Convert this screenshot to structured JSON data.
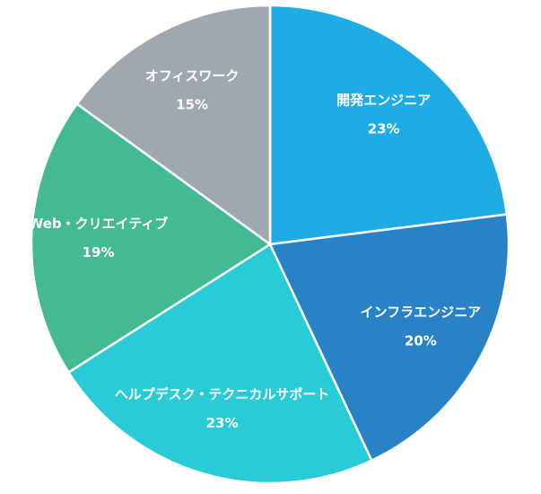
{
  "chart_data": {
    "type": "pie",
    "title": "",
    "start_angle": "12 o'clock",
    "direction": "clockwise",
    "slices": [
      {
        "label": "開発エンジニア",
        "value": 23,
        "value_label": "23%",
        "color": "#1fabe3"
      },
      {
        "label": "インフラエンジニア",
        "value": 20,
        "value_label": "20%",
        "color": "#2a82c6"
      },
      {
        "label": "ヘルプデスク・テクニカルサポート",
        "value": 23,
        "value_label": "23%",
        "color": "#28cbd6"
      },
      {
        "label": "Web・クリエイティブ",
        "value": 19,
        "value_label": "19%",
        "color": "#43b994"
      },
      {
        "label": "オフィスワーク",
        "value": 15,
        "value_label": "15%",
        "color": "#9ea8ae"
      }
    ],
    "slice_border_color": "#ffffff",
    "legend": "none"
  }
}
